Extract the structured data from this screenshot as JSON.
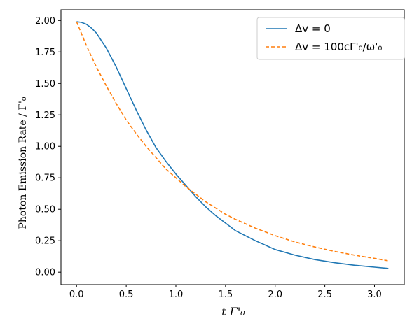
{
  "chart_data": {
    "type": "line",
    "title": "",
    "xlabel": "t Γ'₀",
    "ylabel": "Photon Emission Rate / Γ'₀",
    "xlim": [
      -0.157,
      3.3
    ],
    "ylim": [
      -0.099,
      2.085
    ],
    "xticks": [
      0.0,
      0.5,
      1.0,
      1.5,
      2.0,
      2.5,
      3.0
    ],
    "xtick_labels": [
      "0.0",
      "0.5",
      "1.0",
      "1.5",
      "2.0",
      "2.5",
      "3.0"
    ],
    "yticks": [
      0.0,
      0.25,
      0.5,
      0.75,
      1.0,
      1.25,
      1.5,
      1.75,
      2.0
    ],
    "ytick_labels": [
      "0.00",
      "0.25",
      "0.50",
      "0.75",
      "1.00",
      "1.25",
      "1.50",
      "1.75",
      "2.00"
    ],
    "grid": false,
    "legend_position": "upper-right",
    "series": [
      {
        "name": "Δv = 0",
        "color": "#1f77b4",
        "style": "solid",
        "x": [
          0.0,
          0.05,
          0.1,
          0.15,
          0.2,
          0.3,
          0.4,
          0.5,
          0.6,
          0.7,
          0.8,
          0.9,
          1.0,
          1.1,
          1.2,
          1.3,
          1.4,
          1.5,
          1.6,
          1.8,
          2.0,
          2.2,
          2.4,
          2.6,
          2.8,
          3.0,
          3.14
        ],
        "y": [
          1.99,
          1.985,
          1.97,
          1.94,
          1.9,
          1.78,
          1.63,
          1.46,
          1.29,
          1.13,
          0.99,
          0.88,
          0.78,
          0.69,
          0.6,
          0.52,
          0.45,
          0.39,
          0.33,
          0.25,
          0.18,
          0.135,
          0.1,
          0.075,
          0.055,
          0.04,
          0.03
        ]
      },
      {
        "name": "Δv = 100cΓ'₀/ω'₀",
        "color": "#ff7f0e",
        "style": "dashed",
        "x": [
          0.0,
          0.1,
          0.2,
          0.3,
          0.4,
          0.5,
          0.6,
          0.7,
          0.8,
          0.9,
          1.0,
          1.1,
          1.2,
          1.3,
          1.4,
          1.5,
          1.6,
          1.8,
          2.0,
          2.2,
          2.4,
          2.6,
          2.8,
          3.0,
          3.14
        ],
        "y": [
          1.99,
          1.8,
          1.63,
          1.48,
          1.34,
          1.21,
          1.1,
          1.0,
          0.91,
          0.82,
          0.75,
          0.68,
          0.62,
          0.56,
          0.51,
          0.46,
          0.42,
          0.35,
          0.29,
          0.24,
          0.2,
          0.165,
          0.135,
          0.11,
          0.09
        ]
      }
    ]
  }
}
